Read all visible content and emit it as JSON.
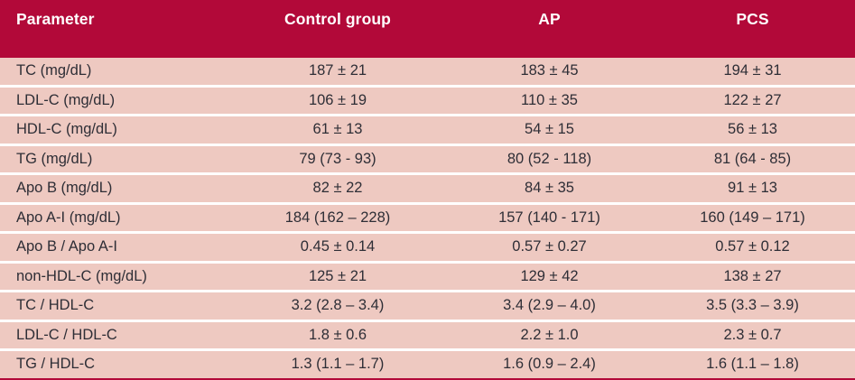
{
  "table": {
    "columns": {
      "parameter": "Parameter",
      "control": "Control group",
      "ap": "AP",
      "pcs": "PCS"
    },
    "rows": [
      {
        "param": "TC (mg/dL)",
        "control": "187 ± 21",
        "ap": "183 ± 45",
        "pcs": "194 ± 31"
      },
      {
        "param": "LDL-C (mg/dL)",
        "control": "106 ± 19",
        "ap": "110 ± 35",
        "pcs": "122 ± 27"
      },
      {
        "param": "HDL-C (mg/dL)",
        "control": "61 ± 13",
        "ap": "54 ± 15",
        "pcs": "56 ± 13"
      },
      {
        "param": "TG (mg/dL)",
        "control": "79 (73 - 93)",
        "ap": "80 (52 - 118)",
        "pcs": "81 (64 - 85)"
      },
      {
        "param": "Apo B (mg/dL)",
        "control": "82 ± 22",
        "ap": "84 ± 35",
        "pcs": "91 ± 13"
      },
      {
        "param": "Apo A-I (mg/dL)",
        "control": "184 (162 – 228)",
        "ap": "157 (140 - 171)",
        "pcs": "160 (149 – 171)"
      },
      {
        "param": "Apo B / Apo A-I",
        "control": "0.45 ± 0.14",
        "ap": "0.57 ± 0.27",
        "pcs": "0.57 ± 0.12"
      },
      {
        "param": "non-HDL-C (mg/dL)",
        "control": "125 ± 21",
        "ap": "129 ± 42",
        "pcs": "138 ± 27"
      },
      {
        "param": "TC / HDL-C",
        "control": "3.2 (2.8 – 3.4)",
        "ap": "3.4 (2.9 – 4.0)",
        "pcs": "3.5 (3.3 – 3.9)"
      },
      {
        "param": "LDL-C / HDL-C",
        "control": "1.8 ± 0.6",
        "ap": "2.2 ± 1.0",
        "pcs": "2.3 ± 0.7"
      },
      {
        "param": "TG / HDL-C",
        "control": "1.3 (1.1 – 1.7)",
        "ap": "1.6 (0.9 – 2.4)",
        "pcs": "1.6 (1.1 – 1.8)"
      }
    ],
    "colors": {
      "header_bg": "#B20939",
      "header_text": "#FFFFFF",
      "row_bg": "#EEC9C1",
      "body_text": "#2E2E36",
      "row_separator": "#FFFFFF",
      "bottom_border": "#B20939"
    }
  }
}
